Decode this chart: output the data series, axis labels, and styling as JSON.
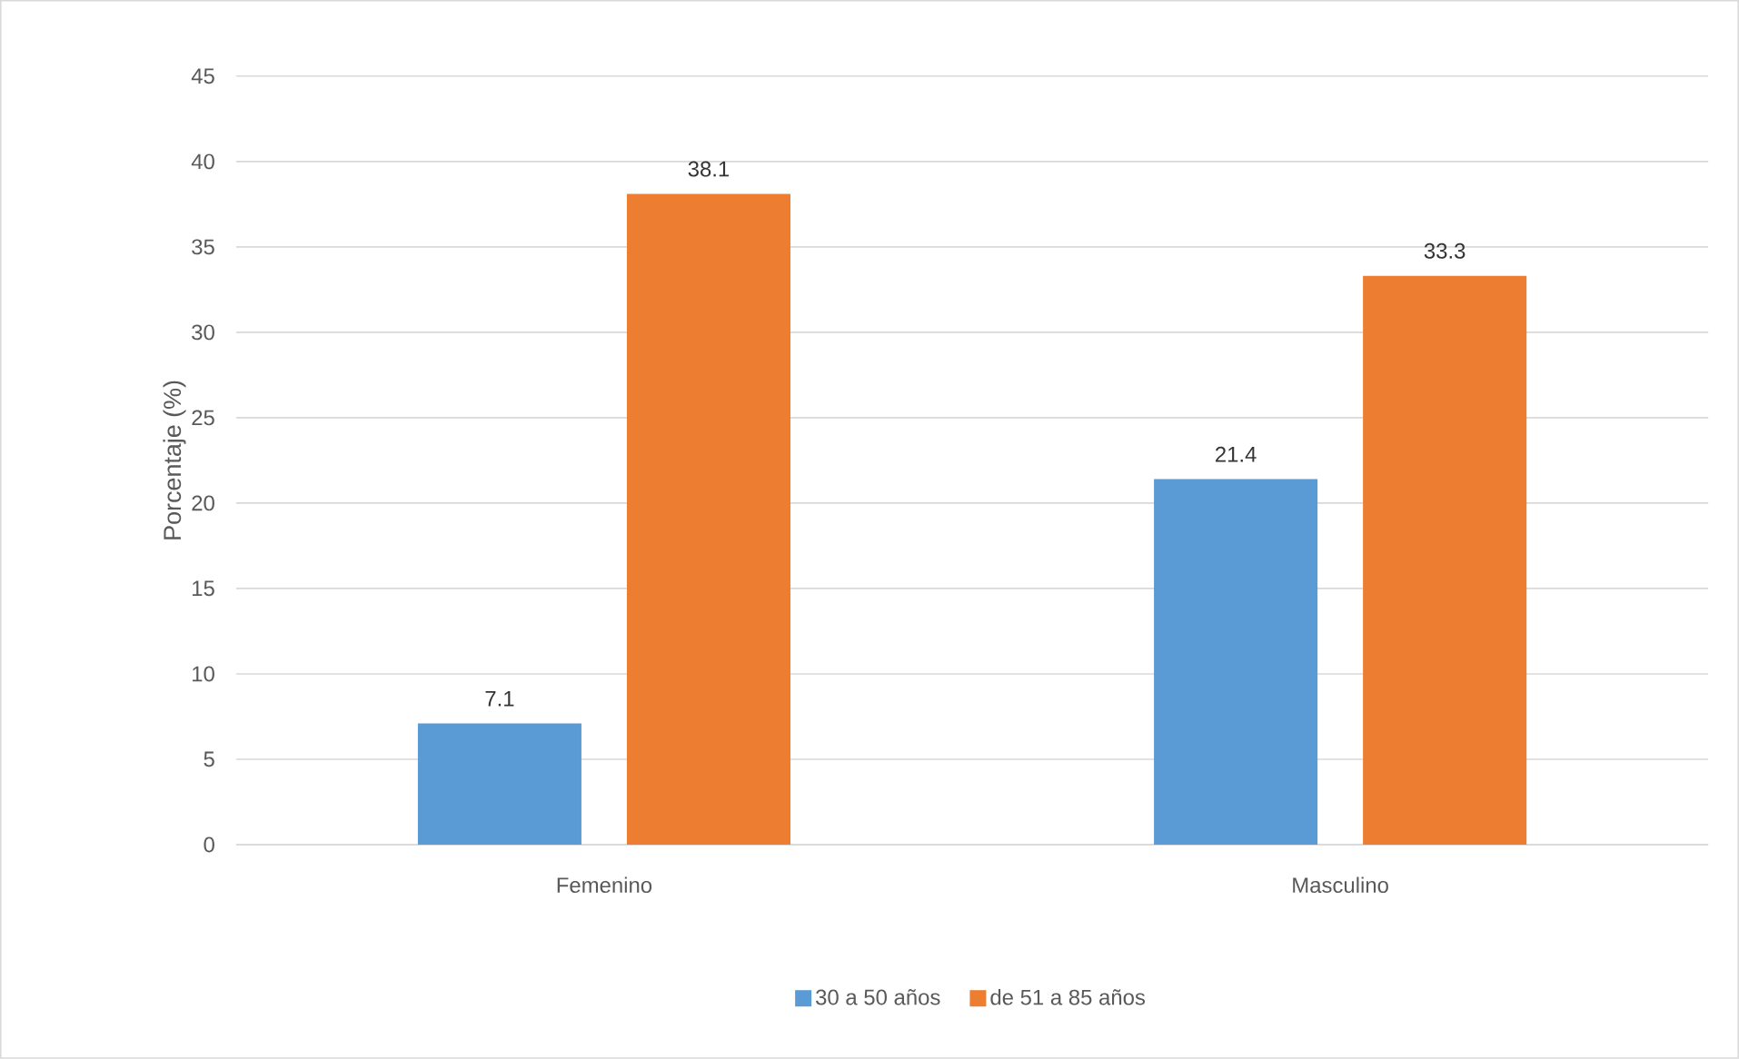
{
  "chart_data": {
    "type": "bar",
    "ylabel": "Porcentaje (%)",
    "categories": [
      "Femenino",
      "Masculino"
    ],
    "series": [
      {
        "name": "30 a 50 años",
        "color": "#5b9bd5",
        "values": [
          7.1,
          21.4
        ]
      },
      {
        "name": "de 51 a 85 años",
        "color": "#ed7d31",
        "values": [
          38.1,
          33.3
        ]
      }
    ],
    "ylim": [
      0,
      45
    ],
    "yticks": [
      0,
      5,
      10,
      15,
      20,
      25,
      30,
      35,
      40,
      45
    ],
    "grid": "y",
    "legend": "bottom",
    "data_labels": true
  }
}
